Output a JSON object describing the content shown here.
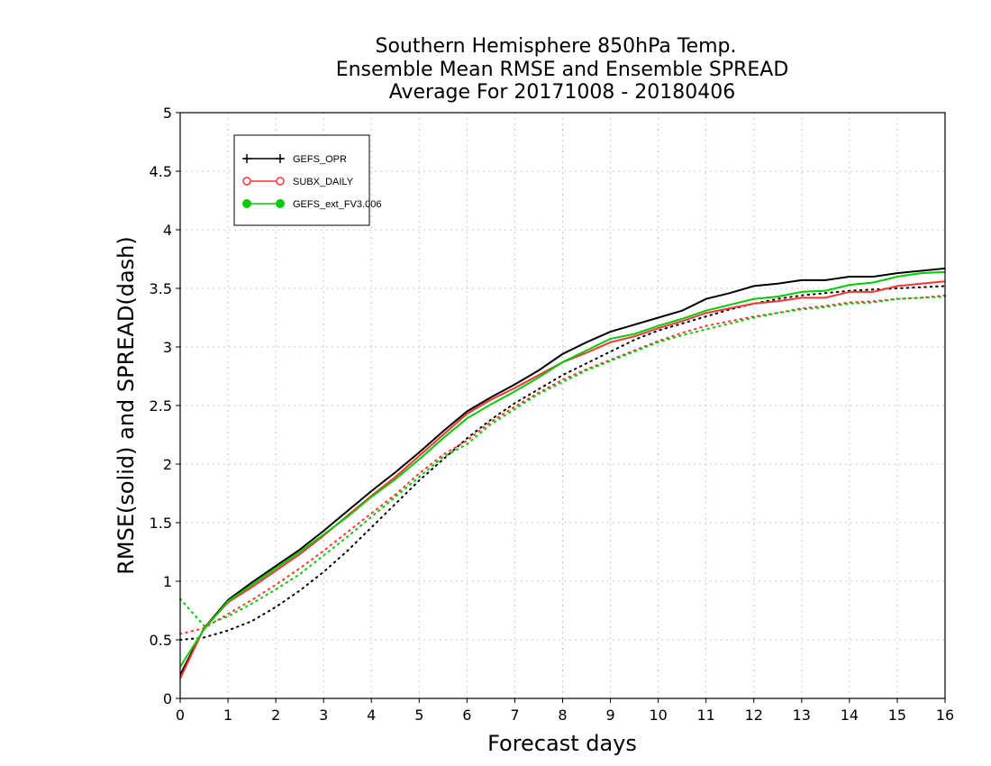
{
  "chart_data": {
    "type": "line",
    "title": [
      "Southern Hemisphere 850hPa Temp.",
      "Ensemble Mean RMSE and Ensemble SPREAD",
      "Average For 20171008 - 20180406"
    ],
    "xlabel": "Forecast days",
    "ylabel": "RMSE(solid) and SPREAD(dash)",
    "xlim": [
      0,
      16
    ],
    "ylim": [
      0,
      5
    ],
    "xticks": [
      "0",
      "1",
      "2",
      "3",
      "4",
      "5",
      "6",
      "7",
      "8",
      "9",
      "10",
      "11",
      "12",
      "13",
      "14",
      "15",
      "16"
    ],
    "yticks": [
      "0",
      "0.5",
      "1",
      "1.5",
      "2",
      "2.5",
      "3",
      "3.5",
      "4",
      "4.5",
      "5"
    ],
    "grid": true,
    "legend_position": "top-left",
    "x": [
      0,
      0.5,
      1,
      1.5,
      2,
      2.5,
      3,
      3.5,
      4,
      4.5,
      5,
      5.5,
      6,
      6.5,
      7,
      7.5,
      8,
      8.5,
      9,
      9.5,
      10,
      10.5,
      11,
      11.5,
      12,
      12.5,
      13,
      13.5,
      14,
      14.5,
      15,
      15.5,
      16
    ],
    "series": [
      {
        "name": "GEFS_OPR",
        "color": "#000000",
        "marker": "plus",
        "rmse": [
          0.2,
          0.6,
          0.84,
          0.99,
          1.13,
          1.27,
          1.43,
          1.6,
          1.77,
          1.93,
          2.1,
          2.28,
          2.45,
          2.57,
          2.68,
          2.8,
          2.94,
          3.04,
          3.13,
          3.19,
          3.25,
          3.31,
          3.41,
          3.46,
          3.52,
          3.54,
          3.57,
          3.57,
          3.6,
          3.6,
          3.63,
          3.65,
          3.67
        ],
        "spread": [
          0.5,
          0.52,
          0.58,
          0.66,
          0.78,
          0.92,
          1.08,
          1.26,
          1.46,
          1.66,
          1.86,
          2.04,
          2.22,
          2.38,
          2.52,
          2.64,
          2.76,
          2.86,
          2.96,
          3.06,
          3.14,
          3.2,
          3.26,
          3.32,
          3.37,
          3.41,
          3.44,
          3.46,
          3.48,
          3.49,
          3.5,
          3.51,
          3.52
        ]
      },
      {
        "name": "SUBX_DAILY",
        "color": "#ff3333",
        "marker": "open-circle",
        "rmse": [
          0.17,
          0.6,
          0.82,
          0.95,
          1.09,
          1.23,
          1.39,
          1.56,
          1.73,
          1.89,
          2.07,
          2.25,
          2.43,
          2.55,
          2.65,
          2.76,
          2.87,
          2.95,
          3.04,
          3.09,
          3.16,
          3.22,
          3.29,
          3.33,
          3.37,
          3.39,
          3.42,
          3.42,
          3.47,
          3.47,
          3.52,
          3.54,
          3.56
        ],
        "spread": [
          0.55,
          0.6,
          0.72,
          0.84,
          0.97,
          1.11,
          1.26,
          1.42,
          1.58,
          1.74,
          1.92,
          2.08,
          2.2,
          2.36,
          2.49,
          2.61,
          2.72,
          2.81,
          2.89,
          2.97,
          3.05,
          3.12,
          3.18,
          3.22,
          3.26,
          3.29,
          3.33,
          3.35,
          3.38,
          3.39,
          3.41,
          3.42,
          3.44
        ]
      },
      {
        "name": "GEFS_ext_FV3.006",
        "color": "#00cc00",
        "marker": "filled-circle",
        "rmse": [
          0.27,
          0.59,
          0.83,
          0.97,
          1.11,
          1.25,
          1.4,
          1.55,
          1.72,
          1.87,
          2.04,
          2.22,
          2.39,
          2.51,
          2.62,
          2.74,
          2.87,
          2.97,
          3.07,
          3.11,
          3.18,
          3.24,
          3.31,
          3.36,
          3.41,
          3.43,
          3.47,
          3.48,
          3.53,
          3.55,
          3.6,
          3.63,
          3.64
        ],
        "spread": [
          0.85,
          0.62,
          0.7,
          0.81,
          0.93,
          1.06,
          1.22,
          1.38,
          1.55,
          1.72,
          1.89,
          2.06,
          2.17,
          2.34,
          2.47,
          2.6,
          2.7,
          2.8,
          2.88,
          2.96,
          3.04,
          3.1,
          3.15,
          3.2,
          3.25,
          3.29,
          3.32,
          3.34,
          3.37,
          3.38,
          3.41,
          3.42,
          3.43
        ]
      }
    ]
  }
}
